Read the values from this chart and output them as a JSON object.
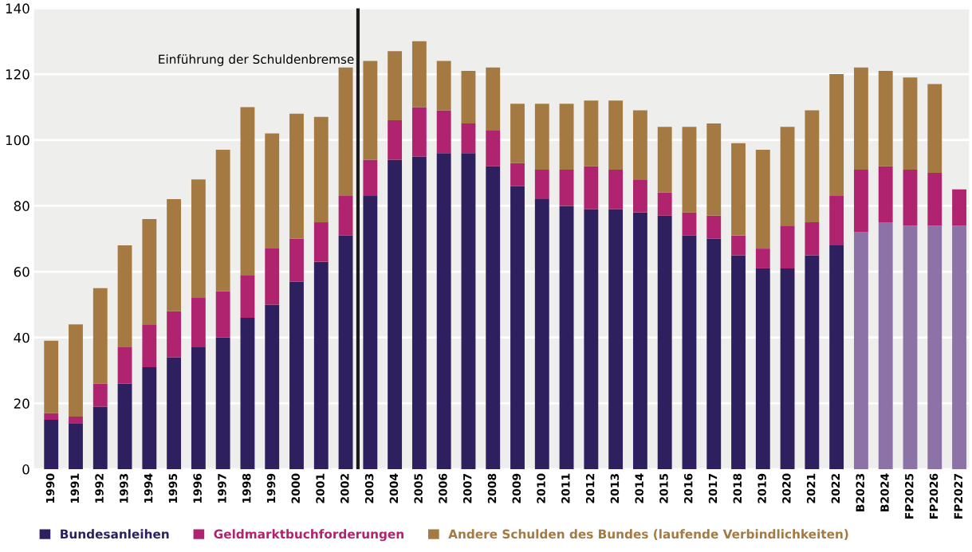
{
  "chart_data": {
    "type": "bar",
    "stacked": true,
    "categories": [
      "1990",
      "1991",
      "1992",
      "1993",
      "1994",
      "1995",
      "1996",
      "1997",
      "1998",
      "1999",
      "2000",
      "2001",
      "2002",
      "2003",
      "2004",
      "2005",
      "2006",
      "2007",
      "2008",
      "2009",
      "2010",
      "2011",
      "2012",
      "2013",
      "2014",
      "2015",
      "2016",
      "2017",
      "2018",
      "2019",
      "2020",
      "2021",
      "2022",
      "B2023",
      "B2024",
      "FP2025",
      "FP2026",
      "FP2027"
    ],
    "series": [
      {
        "name": "Bundesanleihen",
        "color": "#2e1f5e",
        "colors": [
          "#2e1f5e",
          "#2e1f5e",
          "#2e1f5e",
          "#2e1f5e",
          "#2e1f5e",
          "#2e1f5e",
          "#2e1f5e",
          "#2e1f5e",
          "#2e1f5e",
          "#2e1f5e",
          "#2e1f5e",
          "#2e1f5e",
          "#2e1f5e",
          "#2e1f5e",
          "#2e1f5e",
          "#2e1f5e",
          "#2e1f5e",
          "#2e1f5e",
          "#2e1f5e",
          "#2e1f5e",
          "#2e1f5e",
          "#2e1f5e",
          "#2e1f5e",
          "#2e1f5e",
          "#2e1f5e",
          "#2e1f5e",
          "#2e1f5e",
          "#2e1f5e",
          "#2e1f5e",
          "#2e1f5e",
          "#2e1f5e",
          "#2e1f5e",
          "#2e1f5e",
          "#8c72a6",
          "#8c72a6",
          "#8c72a6",
          "#8c72a6",
          "#8c72a6"
        ],
        "values": [
          15,
          14,
          19,
          26,
          31,
          34,
          37,
          40,
          46,
          50,
          57,
          63,
          71,
          83,
          94,
          95,
          96,
          96,
          92,
          86,
          82,
          80,
          79,
          79,
          78,
          77,
          71,
          70,
          65,
          61,
          61,
          65,
          68,
          72,
          75,
          74,
          74,
          74
        ]
      },
      {
        "name": "Geldmarktbuchforderungen",
        "color": "#b0236e",
        "colors": [
          "#b0236e",
          "#b0236e",
          "#b0236e",
          "#b0236e",
          "#b0236e",
          "#b0236e",
          "#b0236e",
          "#b0236e",
          "#b0236e",
          "#b0236e",
          "#b0236e",
          "#b0236e",
          "#b0236e",
          "#b0236e",
          "#b0236e",
          "#b0236e",
          "#b0236e",
          "#b0236e",
          "#b0236e",
          "#b0236e",
          "#b0236e",
          "#b0236e",
          "#b0236e",
          "#b0236e",
          "#b0236e",
          "#b0236e",
          "#b0236e",
          "#b0236e",
          "#b0236e",
          "#b0236e",
          "#b0236e",
          "#b0236e",
          "#b0236e",
          "#b0236e",
          "#b0236e",
          "#b0236e",
          "#b0236e",
          "#b0236e"
        ],
        "values": [
          2,
          2,
          7,
          11,
          13,
          14,
          15,
          14,
          13,
          17,
          13,
          12,
          12,
          11,
          12,
          15,
          13,
          9,
          11,
          7,
          9,
          11,
          13,
          12,
          10,
          7,
          7,
          7,
          6,
          6,
          13,
          10,
          15,
          19,
          17,
          17,
          16,
          11
        ]
      },
      {
        "name": "Andere Schulden des Bundes (laufende Verbindlichkeiten)",
        "color": "#a57a42",
        "values": [
          22,
          28,
          29,
          31,
          32,
          34,
          36,
          43,
          51,
          35,
          38,
          32,
          39,
          30,
          21,
          20,
          15,
          16,
          19,
          18,
          20,
          20,
          20,
          21,
          21,
          20,
          26,
          28,
          28,
          30,
          30,
          34,
          37,
          31,
          29,
          28,
          27,
          null
        ]
      }
    ],
    "ylim": [
      0,
      140
    ],
    "yticks": [
      0,
      20,
      40,
      60,
      80,
      100,
      120,
      140
    ],
    "grid": "y",
    "legend": "bottom",
    "ref_lines": [
      {
        "axis": "x",
        "value": "2003",
        "label": "Einführung der Schuldenbremse",
        "color": "#1a1a1a"
      }
    ]
  }
}
